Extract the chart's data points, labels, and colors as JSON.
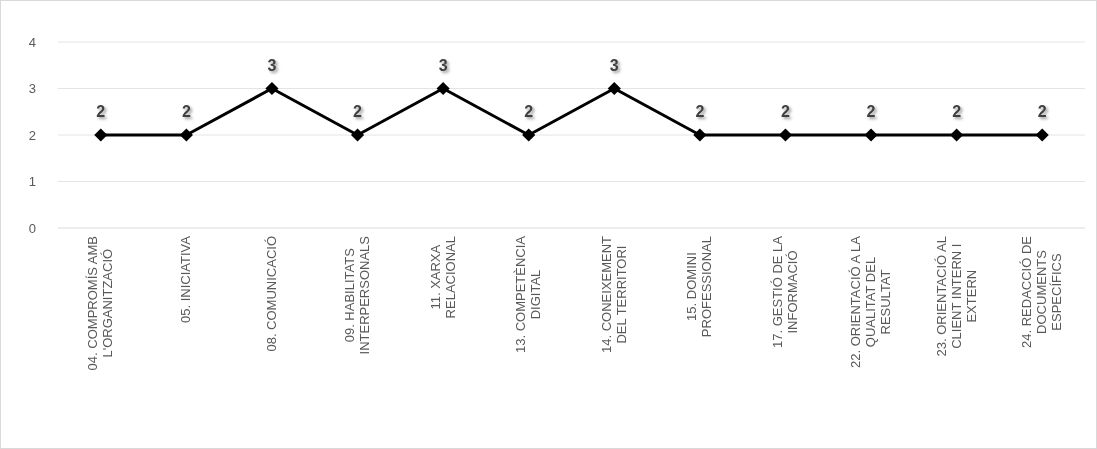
{
  "chart_data": {
    "type": "line",
    "categories": [
      "04. COMPROMÍS AMB L'ORGANITZACIÓ",
      "05. INICIATIVA",
      "08. COMUNICACIÓ",
      "09. HABILITATS INTERPERSONALS",
      "11. XARXA RELACIONAL",
      "13. COMPETÈNCIA DIGITAL",
      "14. CONEIXEMENT DEL TERRITORI",
      "15. DOMINI PROFESSIONAL",
      "17. GESTIÓ DE LA INFORMACIÓ",
      "22. ORIENTACIÓ A LA QUALITAT DEL RESULTAT",
      "23. ORIENTACIÓ AL CLIENT INTERN I EXTERN",
      "24. REDACCIÓ DE DOCUMENTS ESPECÍFICS"
    ],
    "series": [
      {
        "color": "#000000",
        "values": [
          2,
          2,
          3,
          2,
          3,
          2,
          3,
          2,
          2,
          2,
          2,
          2
        ]
      }
    ],
    "ylim": [
      0,
      4
    ],
    "yticks": [
      0,
      1,
      2,
      3,
      4
    ],
    "grid": "y",
    "marker": "diamond",
    "line_style": "solid",
    "data_labels": true
  }
}
